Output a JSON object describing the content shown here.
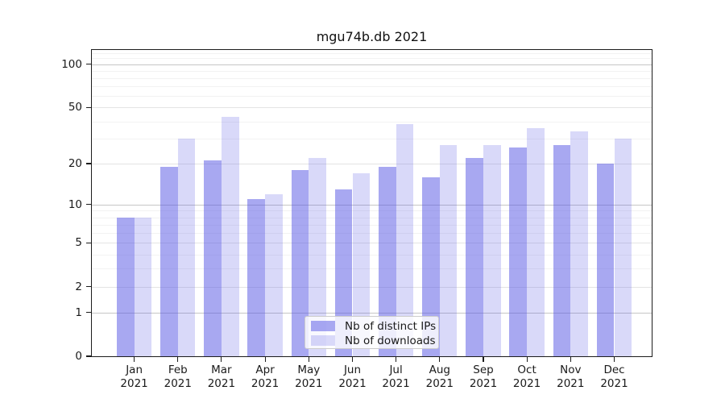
{
  "title": "mgu74b.db 2021",
  "chart_data": {
    "type": "bar",
    "title": "mgu74b.db 2021",
    "categories": [
      "Jan 2021",
      "Feb 2021",
      "Mar 2021",
      "Apr 2021",
      "May 2021",
      "Jun 2021",
      "Jul 2021",
      "Aug 2021",
      "Sep 2021",
      "Oct 2021",
      "Nov 2021",
      "Dec 2021"
    ],
    "months": [
      "Jan",
      "Feb",
      "Mar",
      "Apr",
      "May",
      "Jun",
      "Jul",
      "Aug",
      "Sep",
      "Oct",
      "Nov",
      "Dec"
    ],
    "year": "2021",
    "series": [
      {
        "name": "Nb of distinct IPs",
        "color": "rgba(81,81,227,0.5)",
        "color_flat": "#a8a8ef",
        "values": [
          8,
          19,
          21,
          11,
          18,
          13,
          19,
          16,
          22,
          26,
          27,
          20
        ]
      },
      {
        "name": "Nb of downloads",
        "color": "rgba(81,81,227,0.22)",
        "color_flat": "#d9d9f8",
        "values": [
          8,
          30,
          43,
          12,
          22,
          17,
          38,
          27,
          27,
          36,
          34,
          30
        ]
      }
    ],
    "xlabel": "",
    "ylabel": "",
    "yscale": "symlog",
    "yticks": [
      0,
      1,
      2,
      5,
      10,
      20,
      50,
      100
    ],
    "ylim": [
      0,
      131
    ],
    "grid": true,
    "gridline_values": {
      "major": [
        1,
        10,
        100
      ],
      "mid": [
        2,
        5,
        20,
        50
      ],
      "minor": [
        3,
        4,
        6,
        7,
        8,
        9,
        30,
        40,
        60,
        70,
        80,
        90,
        110,
        120,
        130
      ]
    },
    "legend_position": "lower center"
  }
}
